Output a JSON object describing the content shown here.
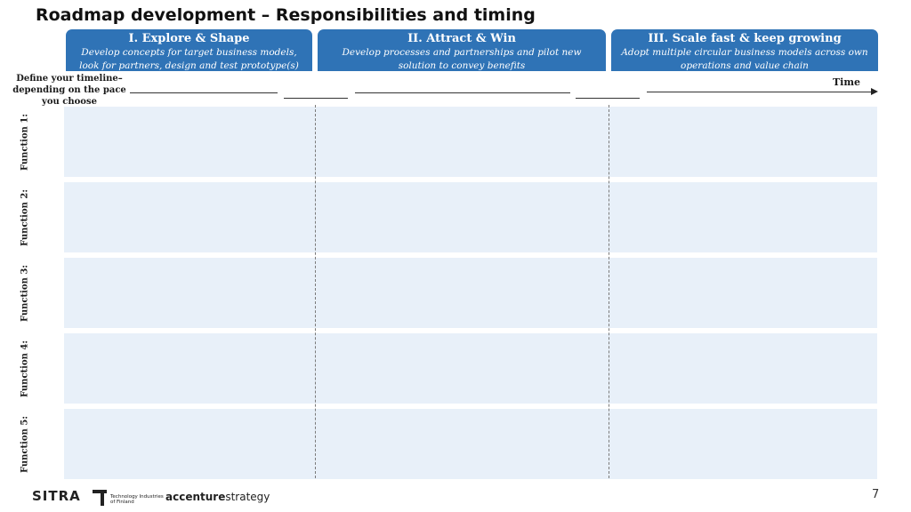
{
  "title": "Roadmap development – Responsibilities and timing",
  "phases": [
    {
      "title": "I. Explore & Shape",
      "desc1": "Develop concepts for target business models,",
      "desc2": "look for partners, design and test prototype(s)"
    },
    {
      "title": "II. Attract & Win",
      "desc1": "Develop processes and partnerships and pilot new",
      "desc2": "solution to convey benefits"
    },
    {
      "title": "III. Scale fast & keep growing",
      "desc1": "Adopt multiple circular business models across own",
      "desc2": "operations and value chain"
    }
  ],
  "timeline": {
    "line1": "Define your timeline–",
    "line2": "depending on the pace",
    "line3": "you choose",
    "time_label": "Time"
  },
  "functions": [
    "Function 1:",
    "Function 2:",
    "Function 3:",
    "Function 4:",
    "Function 5:"
  ],
  "footer": {
    "sitra": "SITRA",
    "ti_line1": "Technology Industries",
    "ti_line2": "of Finland",
    "accenture_bold": "accenture",
    "accenture_light": "strategy",
    "page_number": "7"
  },
  "colors": {
    "phase_header": "#2f73b6",
    "row_fill": "#e8f0f9"
  }
}
